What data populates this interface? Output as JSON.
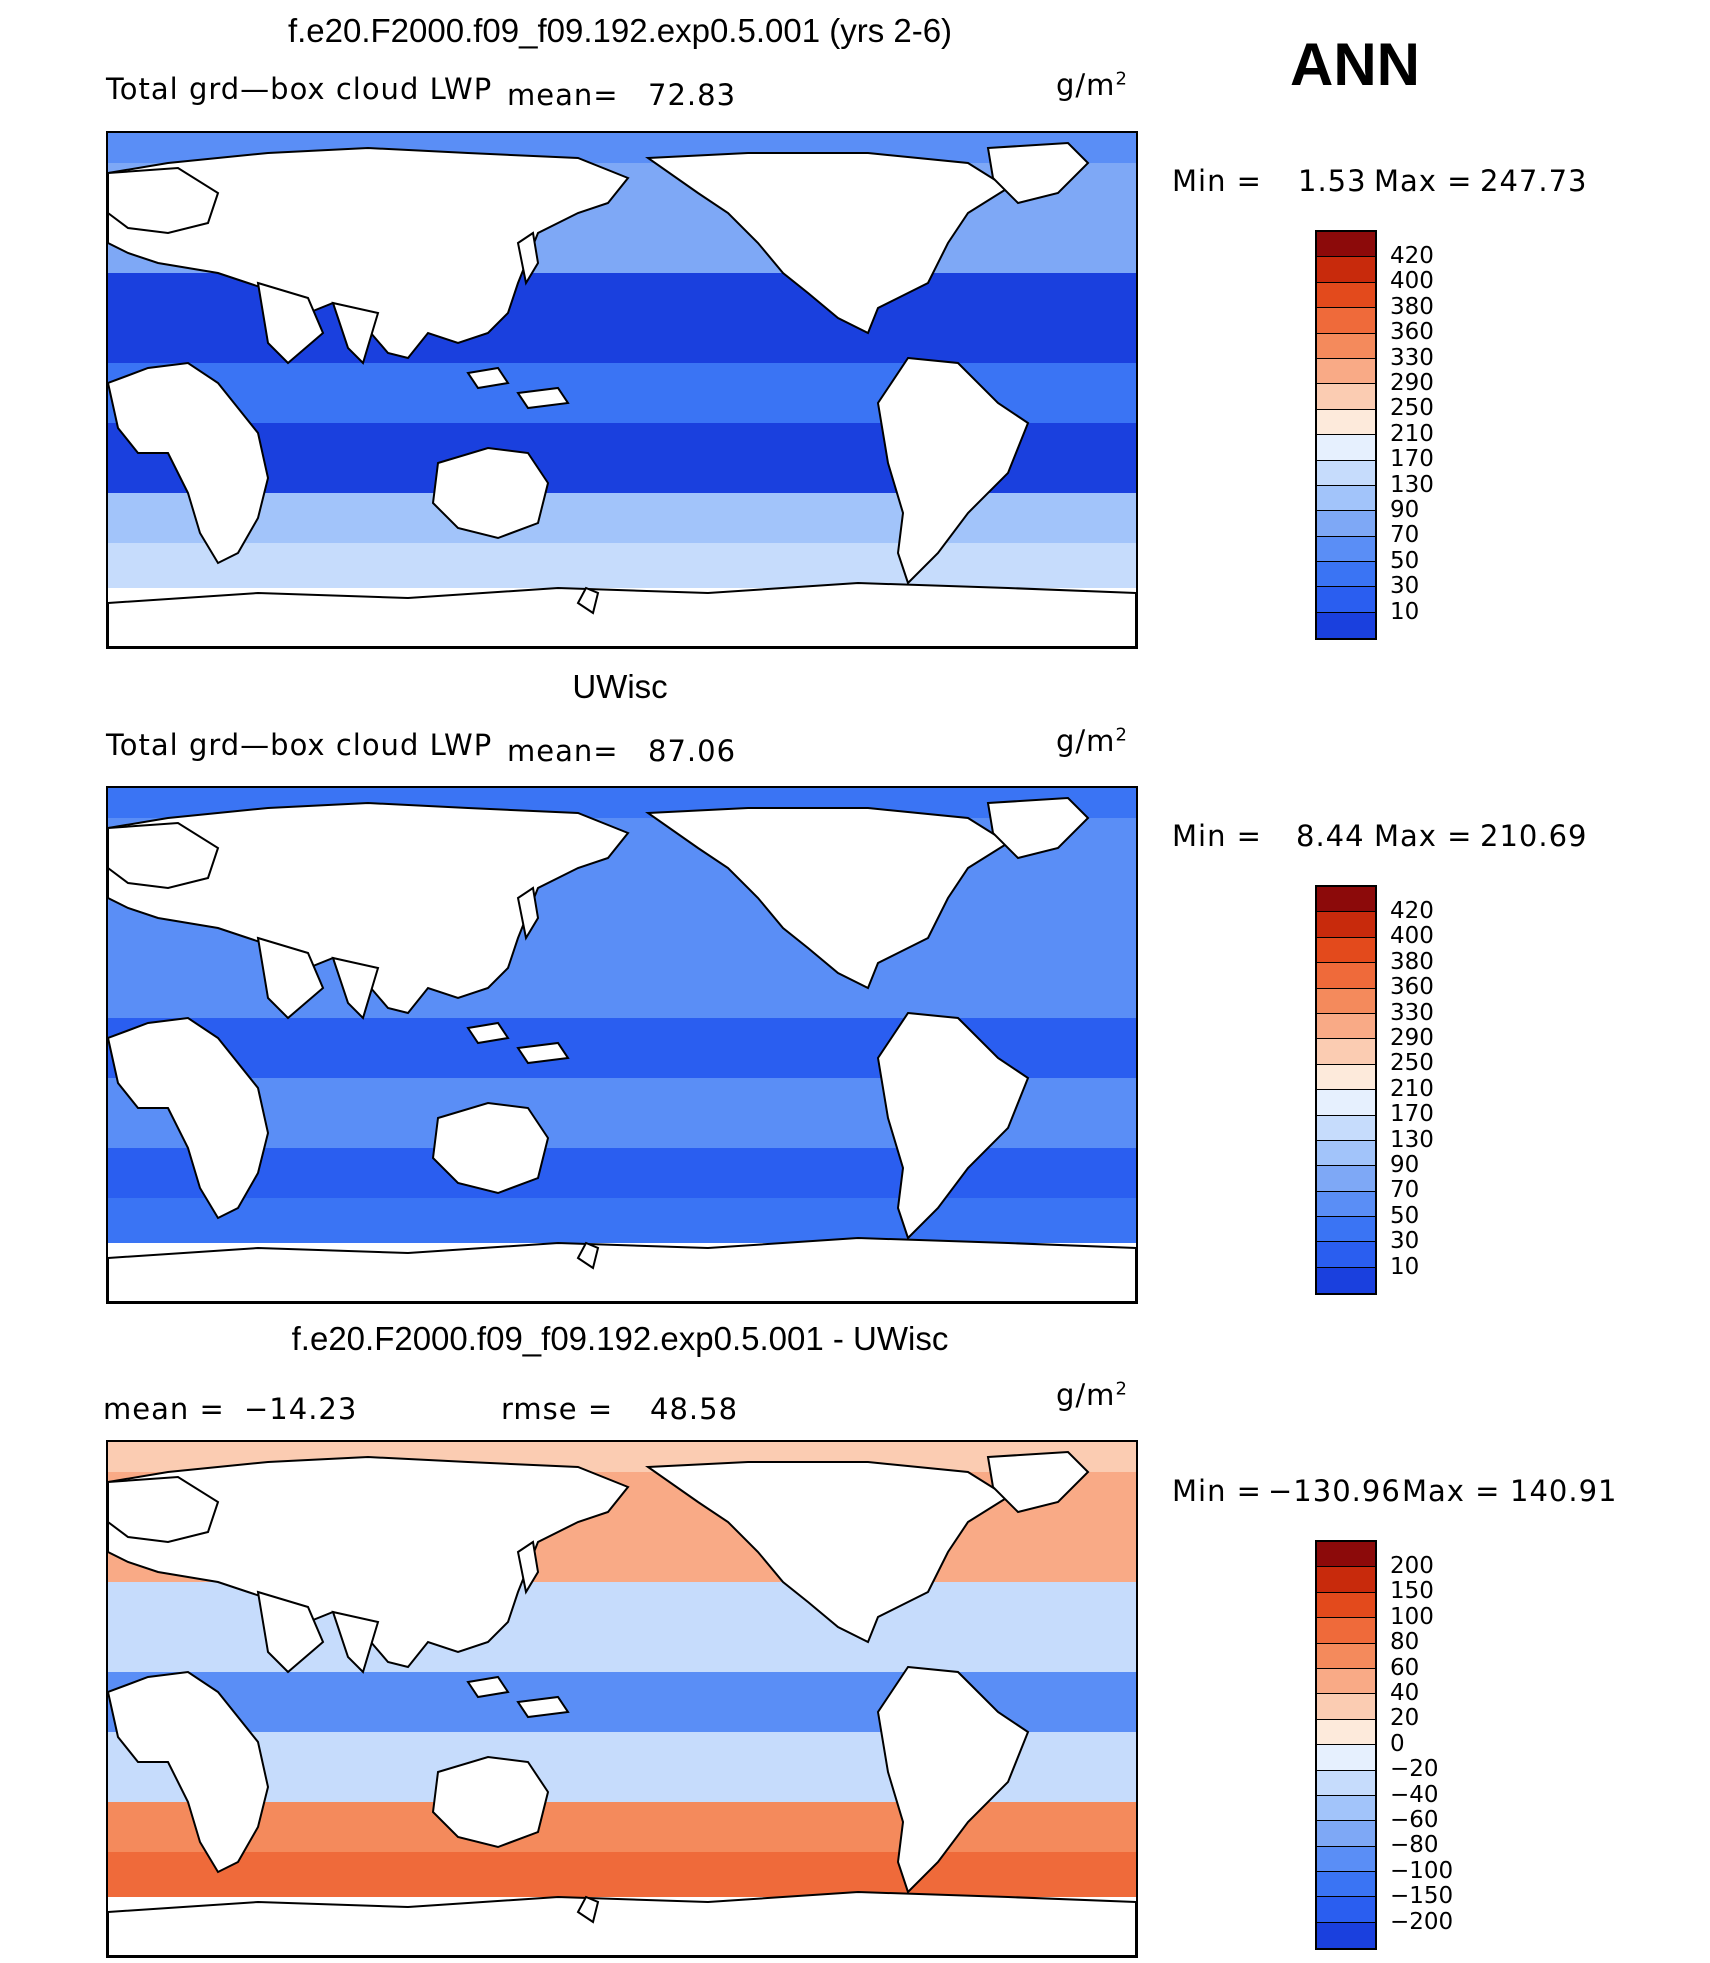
{
  "season": "ANN",
  "unit_base": "g/m",
  "unit_exp": "2",
  "palette": {
    "abs": [
      "#0a0a8c",
      "#1226c4",
      "#1a40de",
      "#2a5ef0",
      "#3a74f4",
      "#5a8ef6",
      "#7ea8f6",
      "#a2c4fa",
      "#c6dcfc",
      "#e6f0fe",
      "#fdeadb",
      "#fbccb2",
      "#f9aa86",
      "#f48a5c",
      "#ef6a3a",
      "#e34a1c",
      "#c82a0c",
      "#8c0a0a"
    ],
    "diff": [
      "#0a0a8c",
      "#1226c4",
      "#1a40de",
      "#2a5ef0",
      "#3a74f4",
      "#5a8ef6",
      "#7ea8f6",
      "#a2c4fa",
      "#c6dcfc",
      "#e6f0fe",
      "#fdeadb",
      "#fbccb2",
      "#f9aa86",
      "#f48a5c",
      "#ef6a3a",
      "#e34a1c",
      "#c82a0c",
      "#8c0a0a"
    ]
  },
  "panels": [
    {
      "title": "f.e20.F2000.f09_f09.192.exp0.5.001 (yrs 2-6)",
      "var_label": "Total grd—box cloud LWP",
      "mean_label": "mean=",
      "mean_value": "72.83",
      "min_label": "Min =",
      "min_value": "1.53",
      "max_label": "Max =",
      "max_value": "247.73",
      "colorbar_ticks": [
        "420",
        "400",
        "380",
        "360",
        "330",
        "290",
        "250",
        "210",
        "170",
        "130",
        "90",
        "70",
        "50",
        "30",
        "10"
      ],
      "fill_levels": {
        "tropics": 4,
        "midlat": 2,
        "south": 8,
        "nh_high": 6
      }
    },
    {
      "title": "UWisc",
      "var_label": "Total grd—box cloud LWP",
      "mean_label": "mean=",
      "mean_value": "87.06",
      "min_label": "Min =",
      "min_value": "8.44",
      "max_label": "Max =",
      "max_value": "210.69",
      "colorbar_ticks": [
        "420",
        "400",
        "380",
        "360",
        "330",
        "290",
        "250",
        "210",
        "170",
        "130",
        "90",
        "70",
        "50",
        "30",
        "10"
      ],
      "fill_levels": {
        "tropics": 3,
        "midlat": 5,
        "south": 4,
        "nh_high": 5
      }
    },
    {
      "title": "f.e20.F2000.f09_f09.192.exp0.5.001 - UWisc",
      "mean_label": "mean =",
      "mean_value": "−14.23",
      "rmse_label": "rmse =",
      "rmse_value": "48.58",
      "min_label": "Min =",
      "min_value": "−130.96",
      "max_label": "Max =",
      "max_value": "140.91",
      "colorbar_ticks": [
        "200",
        "150",
        "100",
        "80",
        "60",
        "40",
        "20",
        "0",
        "−20",
        "−40",
        "−60",
        "−80",
        "−100",
        "−150",
        "−200"
      ],
      "fill_levels": {
        "tropics": 5,
        "midlat": 8,
        "south": 14,
        "nh_high": 12
      }
    }
  ]
}
